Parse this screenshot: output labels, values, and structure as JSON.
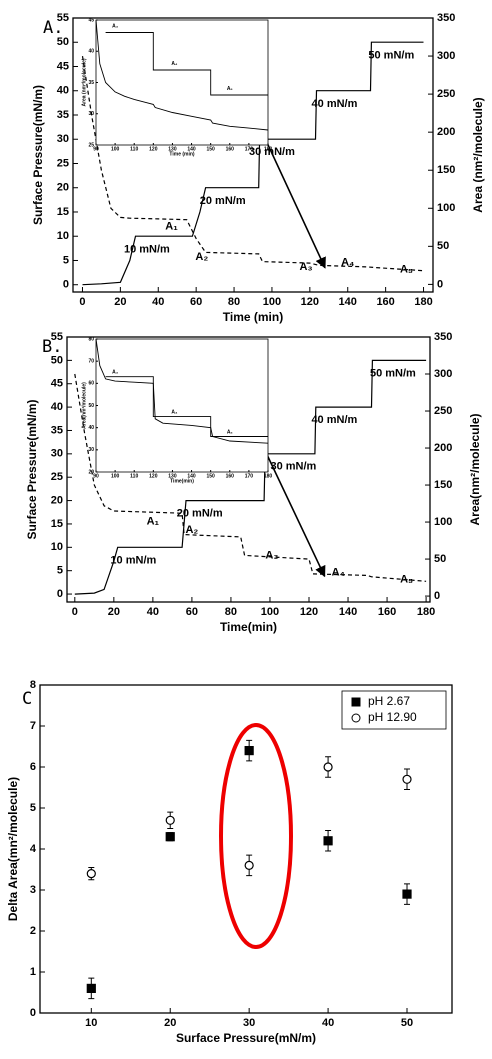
{
  "chart_data": [
    {
      "type": "line",
      "panel_label": "A.",
      "xlabel": "Time (min)",
      "ylabel": "Surface Pressure(mN/m)",
      "y2label": "Area (nm²/molecule)",
      "xlim": [
        -5,
        185
      ],
      "ylim": [
        -1.5,
        55
      ],
      "y2lim": [
        -10,
        350
      ],
      "xticks": [
        0,
        20,
        40,
        60,
        80,
        100,
        120,
        140,
        160,
        180
      ],
      "yticks": [
        0,
        5,
        10,
        15,
        20,
        25,
        30,
        35,
        40,
        45,
        50,
        55
      ],
      "y2ticks": [
        0,
        50,
        100,
        150,
        200,
        250,
        300,
        350
      ],
      "series": [
        {
          "color": "#000000",
          "style": "solid",
          "x": [
            0,
            10,
            20,
            25,
            28,
            40,
            58,
            62,
            65,
            93,
            93.5,
            123,
            123.5,
            152,
            152.5,
            180
          ],
          "values": [
            0,
            0.2,
            0.5,
            5,
            10,
            10,
            10,
            15,
            20,
            20,
            30,
            30,
            40,
            40,
            50,
            50
          ]
        },
        {
          "color": "#000000",
          "style": "dashed",
          "axis": "y2",
          "x": [
            0,
            5,
            10,
            15,
            20,
            25,
            40,
            55,
            60,
            65,
            93,
            95,
            120,
            125,
            150,
            155,
            180
          ],
          "values": [
            300,
            220,
            150,
            100,
            88,
            87,
            86,
            85,
            60,
            42,
            40,
            30,
            28,
            25,
            23,
            22,
            18
          ]
        }
      ],
      "annotations": [
        "10 mN/m",
        "20 mN/m",
        "30 mN/m",
        "40 mN/m",
        "50 mN/m",
        "A₁",
        "A₂",
        "A₃",
        "A₄",
        "A₅"
      ]
    },
    {
      "type": "line",
      "xlabel": "Time (min)",
      "ylabel": "Area (nm²/molecule)",
      "xlim": [
        90,
        180
      ],
      "ylim": [
        25,
        45
      ],
      "xticks": [
        90,
        100,
        110,
        120,
        130,
        140,
        150,
        160,
        170,
        180
      ],
      "yticks": [
        25,
        30,
        35,
        40,
        45
      ],
      "series": [
        {
          "color": "#000000",
          "style": "solid",
          "x": [
            90,
            92,
            95,
            100,
            105,
            110,
            115,
            120,
            121,
            130,
            140,
            150,
            151,
            160,
            170,
            180
          ],
          "values": [
            45,
            38,
            35,
            33.5,
            32.8,
            32.3,
            31.9,
            31.5,
            31,
            30.2,
            29.6,
            29,
            28.5,
            28,
            27.7,
            27.4
          ]
        },
        {
          "color": "#000000",
          "style": "solid",
          "x": [
            95,
            120,
            120,
            150,
            150,
            180
          ],
          "values": [
            43,
            43,
            37,
            37,
            33,
            33
          ]
        }
      ],
      "annotations": [
        "A₃",
        "A₄",
        "A₅"
      ]
    },
    {
      "type": "line",
      "panel_label": "B.",
      "xlabel": "Time(min)",
      "ylabel": "Surface Pressure(mN/m)",
      "y2label": "Area(nm²/molecule)",
      "xlim": [
        -4,
        182
      ],
      "ylim": [
        -1.7,
        55
      ],
      "y2lim": [
        -8,
        350
      ],
      "xticks": [
        0,
        20,
        40,
        60,
        80,
        100,
        120,
        140,
        160,
        180
      ],
      "yticks": [
        0,
        5,
        10,
        15,
        20,
        25,
        30,
        35,
        40,
        45,
        50,
        55
      ],
      "y2ticks": [
        0,
        50,
        100,
        150,
        200,
        250,
        300,
        350
      ],
      "series": [
        {
          "color": "#000000",
          "style": "solid",
          "x": [
            0,
            10,
            15,
            20,
            22,
            55,
            57,
            97,
            97.5,
            123,
            123.5,
            152,
            152.5,
            180
          ],
          "values": [
            0,
            0.2,
            1,
            7,
            10,
            10,
            20,
            20,
            30,
            30,
            40,
            40,
            50,
            50
          ]
        },
        {
          "color": "#000000",
          "style": "dashed",
          "axis": "y2",
          "x": [
            0,
            5,
            10,
            15,
            20,
            55,
            56,
            85,
            87,
            120,
            122,
            150,
            152,
            180
          ],
          "values": [
            300,
            220,
            150,
            122,
            115,
            112,
            83,
            80,
            55,
            50,
            30,
            28,
            26,
            20
          ]
        }
      ],
      "annotations": [
        "10 mN/m",
        "20 mN/m",
        "30 mN/m",
        "40 mN/m",
        "50 mN/m",
        "A₁",
        "A₂",
        "A₃",
        "A₄",
        "A₅"
      ]
    },
    {
      "type": "line",
      "xlabel": "Time(min)",
      "ylabel": "Area(nm²/molecule)",
      "xlim": [
        90,
        180
      ],
      "ylim": [
        20,
        80
      ],
      "xticks": [
        90,
        100,
        110,
        120,
        130,
        140,
        150,
        160,
        170,
        180
      ],
      "yticks": [
        20,
        30,
        40,
        50,
        60,
        70,
        80
      ],
      "series": [
        {
          "color": "#000000",
          "style": "solid",
          "x": [
            90,
            92,
            95,
            100,
            110,
            120,
            121,
            125,
            140,
            150,
            151,
            160,
            180
          ],
          "values": [
            80,
            68,
            62,
            61,
            60.5,
            60,
            44,
            42,
            41,
            40,
            36,
            34,
            33
          ]
        },
        {
          "color": "#000000",
          "style": "solid",
          "x": [
            95,
            120,
            120,
            150,
            150,
            180
          ],
          "values": [
            63,
            63,
            45,
            45,
            36,
            36
          ]
        }
      ],
      "annotations": [
        "A₃",
        "A₄",
        "A₅"
      ]
    },
    {
      "type": "scatter",
      "panel_label": "C",
      "xlabel": "Surface Pressure(mN/m)",
      "ylabel": "Delta Area(mn²/molecule)",
      "xlim": [
        3.5,
        55.7
      ],
      "ylim": [
        0,
        8
      ],
      "xticks": [
        10,
        20,
        30,
        40,
        50
      ],
      "yticks": [
        0,
        1,
        2,
        3,
        4,
        5,
        6,
        7,
        8
      ],
      "x": [
        10,
        20,
        30,
        40,
        50
      ],
      "series": [
        {
          "name": "pH  2.67",
          "color": "#000000",
          "marker": "square",
          "fill": "#000000",
          "values": [
            0.6,
            4.3,
            6.4,
            4.2,
            2.9
          ],
          "errors": [
            0.25,
            0.1,
            0.25,
            0.25,
            0.25
          ]
        },
        {
          "name": "pH 12.90",
          "color": "#000000",
          "marker": "circle",
          "fill": "#ffffff",
          "values": [
            3.4,
            4.7,
            3.6,
            6.0,
            5.7
          ],
          "errors": [
            0.15,
            0.2,
            0.25,
            0.25,
            0.25
          ]
        }
      ],
      "legend": "upper right"
    }
  ]
}
